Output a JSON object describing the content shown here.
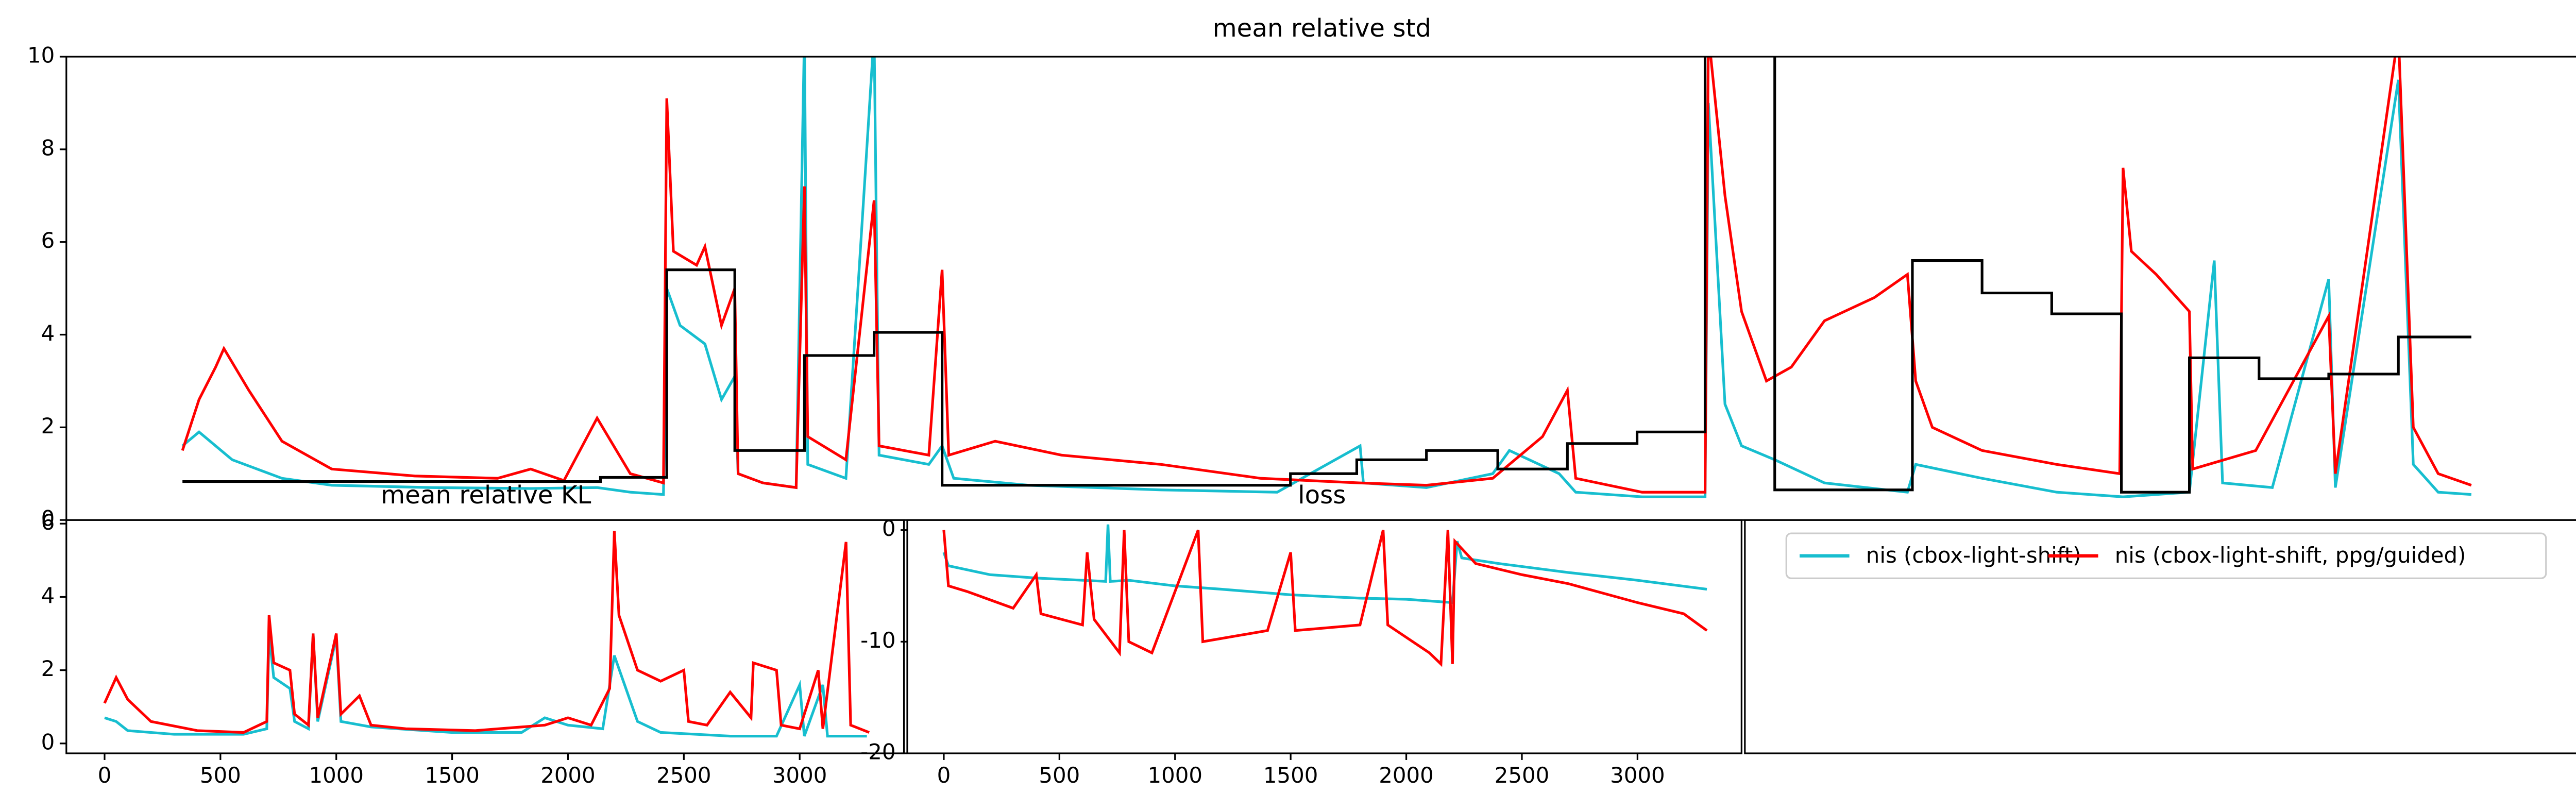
{
  "chart_data": [
    {
      "type": "line",
      "title": "mean relative std",
      "xlim": [
        40,
        1555
      ],
      "ylim": [
        0,
        10
      ],
      "yticks": [
        0,
        2,
        4,
        6,
        8,
        10
      ],
      "series": [
        {
          "color": "#17becf",
          "x": [
            110,
            120,
            140,
            170,
            200,
            260,
            320,
            360,
            380,
            400,
            402,
            410,
            425,
            435,
            443,
            445,
            460,
            480,
            485,
            487,
            510,
            527,
            530,
            560,
            568,
            575,
            620,
            700,
            770,
            820,
            822,
            860,
            900,
            910,
            940,
            950,
            990,
            1028,
            1030,
            1040,
            1050,
            1070,
            1100,
            1150,
            1155,
            1195,
            1240,
            1280,
            1320,
            1335,
            1340,
            1370,
            1404,
            1408,
            1446,
            1455,
            1470,
            1490
          ],
          "values": [
            1.6,
            1.9,
            1.3,
            0.9,
            0.75,
            0.7,
            0.68,
            0.7,
            0.6,
            0.55,
            5.0,
            4.2,
            3.8,
            2.6,
            3.1,
            1.0,
            0.8,
            0.7,
            10.5,
            1.2,
            0.9,
            10.5,
            1.4,
            1.2,
            1.6,
            0.9,
            0.75,
            0.65,
            0.6,
            1.6,
            0.8,
            0.7,
            1.0,
            1.5,
            1.0,
            0.6,
            0.5,
            0.5,
            9.0,
            2.5,
            1.6,
            1.3,
            0.8,
            0.6,
            1.2,
            0.9,
            0.6,
            0.5,
            0.6,
            5.6,
            0.8,
            0.7,
            5.2,
            0.7,
            9.5,
            1.2,
            0.6,
            0.55
          ]
        },
        {
          "color": "#ff0000",
          "x": [
            110,
            120,
            130,
            135,
            150,
            170,
            200,
            250,
            300,
            320,
            340,
            360,
            380,
            400,
            402,
            406,
            420,
            425,
            435,
            443,
            445,
            460,
            480,
            485,
            487,
            510,
            527,
            530,
            560,
            568,
            572,
            600,
            640,
            700,
            760,
            820,
            860,
            900,
            930,
            945,
            950,
            990,
            1028,
            1030,
            1040,
            1050,
            1065,
            1080,
            1100,
            1130,
            1150,
            1155,
            1165,
            1195,
            1240,
            1278,
            1280,
            1285,
            1300,
            1320,
            1322,
            1360,
            1404,
            1408,
            1446,
            1455,
            1470,
            1490
          ],
          "values": [
            1.5,
            2.6,
            3.3,
            3.7,
            2.8,
            1.7,
            1.1,
            0.95,
            0.9,
            1.1,
            0.85,
            2.2,
            1.0,
            0.8,
            9.1,
            5.8,
            5.5,
            5.9,
            4.2,
            5.0,
            1.0,
            0.8,
            0.7,
            7.2,
            1.8,
            1.3,
            6.9,
            1.6,
            1.4,
            5.4,
            1.4,
            1.7,
            1.4,
            1.2,
            0.9,
            0.8,
            0.75,
            0.9,
            1.8,
            2.8,
            0.9,
            0.6,
            0.6,
            10.5,
            7,
            4.5,
            3.0,
            3.3,
            4.3,
            4.8,
            5.3,
            3.0,
            2.0,
            1.5,
            1.2,
            1.0,
            7.6,
            5.8,
            5.3,
            4.5,
            1.1,
            1.5,
            4.4,
            1.0,
            10.5,
            2.0,
            1.0,
            0.75
          ]
        },
        {
          "color": "#000000",
          "x": [
            110,
            362,
            362,
            402,
            402,
            443,
            443,
            485,
            485,
            527,
            527,
            568,
            568,
            778,
            778,
            818,
            818,
            860,
            860,
            903,
            903,
            945,
            945,
            987,
            987,
            1028,
            1028,
            1070,
            1070,
            1153,
            1153,
            1195,
            1195,
            1237,
            1237,
            1279,
            1279,
            1320,
            1320,
            1362,
            1362,
            1404,
            1404,
            1446,
            1446,
            1490
          ],
          "values": [
            0.83,
            0.83,
            0.92,
            0.92,
            5.4,
            5.4,
            1.5,
            1.5,
            3.55,
            3.55,
            4.05,
            4.05,
            0.75,
            0.75,
            1.0,
            1.0,
            1.3,
            1.3,
            1.5,
            1.5,
            1.1,
            1.1,
            1.65,
            1.65,
            1.9,
            1.9,
            12,
            12,
            0.65,
            0.65,
            5.6,
            5.6,
            4.9,
            4.9,
            4.45,
            4.45,
            0.6,
            0.6,
            3.5,
            3.5,
            3.05,
            3.05,
            3.15,
            3.15,
            3.95,
            3.95
          ]
        }
      ]
    },
    {
      "type": "line",
      "title": "mean relative KL",
      "xlim": [
        -165,
        3450
      ],
      "ylim": [
        -0.27,
        6.1
      ],
      "yticks": [
        0,
        2,
        4,
        6
      ],
      "xticks": [
        0,
        500,
        1000,
        1500,
        2000,
        2500,
        3000
      ],
      "series": [
        {
          "color": "#17becf",
          "x": [
            0,
            50,
            100,
            300,
            600,
            700,
            710,
            730,
            800,
            820,
            880,
            900,
            920,
            1000,
            1020,
            1150,
            1500,
            1800,
            1900,
            2000,
            2150,
            2200,
            2300,
            2400,
            2700,
            2900,
            3000,
            3020,
            3100,
            3120,
            3200,
            3290
          ],
          "values": [
            0.7,
            0.6,
            0.35,
            0.25,
            0.25,
            0.4,
            3.0,
            1.8,
            1.5,
            0.6,
            0.4,
            3.0,
            0.6,
            2.9,
            0.6,
            0.45,
            0.3,
            0.3,
            0.7,
            0.5,
            0.4,
            2.4,
            0.6,
            0.3,
            0.2,
            0.2,
            1.6,
            0.2,
            1.6,
            0.2,
            0.2,
            0.2
          ]
        },
        {
          "color": "#ff0000",
          "x": [
            0,
            50,
            100,
            200,
            400,
            600,
            700,
            710,
            730,
            800,
            820,
            880,
            900,
            920,
            1000,
            1020,
            1100,
            1150,
            1300,
            1600,
            1900,
            2000,
            2100,
            2180,
            2200,
            2220,
            2300,
            2400,
            2500,
            2520,
            2600,
            2700,
            2790,
            2800,
            2900,
            2920,
            3000,
            3080,
            3100,
            3200,
            3220,
            3300
          ],
          "values": [
            1.1,
            1.8,
            1.2,
            0.6,
            0.35,
            0.3,
            0.6,
            3.5,
            2.2,
            2.0,
            0.8,
            0.5,
            3.0,
            0.7,
            3.0,
            0.8,
            1.3,
            0.5,
            0.4,
            0.35,
            0.5,
            0.7,
            0.5,
            1.5,
            5.8,
            3.5,
            2.0,
            1.7,
            2.0,
            0.6,
            0.5,
            1.4,
            0.7,
            2.2,
            2.0,
            0.5,
            0.4,
            2.0,
            0.4,
            5.5,
            0.5,
            0.3
          ]
        }
      ]
    },
    {
      "type": "line",
      "title": "loss",
      "xlim": [
        -158,
        3450
      ],
      "ylim": [
        -20,
        0.9
      ],
      "yticks": [
        -20,
        -10,
        0
      ],
      "xticks": [
        0,
        500,
        1000,
        1500,
        2000,
        2500,
        3000
      ],
      "series": [
        {
          "color": "#17becf",
          "x": [
            0,
            20,
            200,
            400,
            700,
            710,
            720,
            800,
            1000,
            1200,
            1500,
            1800,
            2000,
            2200,
            2220,
            2240,
            2400,
            2700,
            3000,
            3300
          ],
          "values": [
            -2,
            -3.2,
            -4,
            -4.3,
            -4.6,
            0.5,
            -4.6,
            -4.5,
            -5,
            -5.3,
            -5.8,
            -6.1,
            -6.2,
            -6.5,
            -1,
            -2.5,
            -3,
            -3.8,
            -4.5,
            -5.3
          ]
        },
        {
          "color": "#ff0000",
          "x": [
            0,
            20,
            100,
            300,
            400,
            420,
            600,
            620,
            650,
            760,
            780,
            800,
            900,
            1100,
            1120,
            1400,
            1500,
            1520,
            1800,
            1900,
            1920,
            2100,
            2150,
            2180,
            2200,
            2210,
            2300,
            2500,
            2700,
            3000,
            3200,
            3300
          ],
          "values": [
            0,
            -5,
            -5.5,
            -7,
            -4,
            -7.5,
            -8.5,
            -2,
            -8,
            -11,
            0,
            -10,
            -11,
            0,
            -10,
            -9,
            -2,
            -9,
            -8.5,
            0,
            -8.5,
            -11,
            -12,
            0,
            -12,
            -1,
            -3,
            -4,
            -4.8,
            -6.5,
            -7.5,
            -9
          ]
        }
      ]
    },
    {
      "type": "legend",
      "legend": "upper left",
      "series": [
        {
          "name": "nis (cbox-light-shift)",
          "color": "#17becf"
        },
        {
          "name": "nis (cbox-light-shift, ppg/guided)",
          "color": "#ff0000"
        }
      ]
    }
  ]
}
